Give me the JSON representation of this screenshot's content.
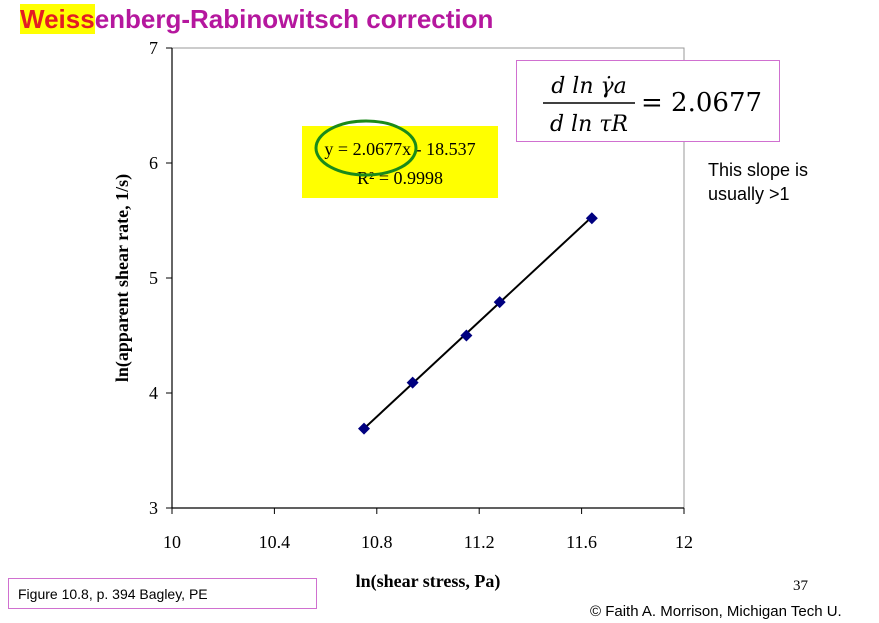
{
  "slide": {
    "title_highlight": "Weiss",
    "title_rest": "enberg-Rabinowitsch correction",
    "slope_note": "This slope is usually >1",
    "figure_reference": "Figure 10.8, p. 394 Bagley, PE",
    "page_number": "37",
    "copyright": "© Faith A. Morrison, Michigan Tech U."
  },
  "formula": {
    "numerator": "d ln γ̇a",
    "denominator": "d ln τR",
    "value": "= 2.0677"
  },
  "colors": {
    "title": "#b5179e",
    "title_highlight_text": "#e31c23",
    "highlight": "#ffff00",
    "box_border": "#d070d0",
    "marker": "#000080",
    "trendline": "#000000",
    "circle": "#1a8a1a"
  },
  "chart_data": {
    "type": "scatter",
    "xlabel": "ln(shear stress, Pa)",
    "ylabel": "ln(apparent shear rate, 1/s)",
    "xlim": [
      10,
      12
    ],
    "ylim": [
      3,
      7
    ],
    "xticks": [
      "10",
      "10.4",
      "10.8",
      "11.2",
      "11.6",
      "12"
    ],
    "xtick_values": [
      10,
      10.4,
      10.8,
      11.2,
      11.6,
      12
    ],
    "yticks": [
      "3",
      "4",
      "5",
      "6",
      "7"
    ],
    "ytick_values": [
      3,
      4,
      5,
      6,
      7
    ],
    "grid": false,
    "marker": "diamond",
    "series": [
      {
        "x": [
          10.75,
          10.94,
          11.15,
          11.28,
          11.64
        ],
        "y": [
          3.69,
          4.09,
          4.5,
          4.79,
          5.52
        ]
      }
    ],
    "trendline": {
      "equation": "y = 2.0677x - 18.537",
      "r_squared": "R² = 0.9998",
      "slope": 2.0677,
      "intercept": -18.537,
      "x_range": [
        10.75,
        11.64
      ]
    }
  }
}
